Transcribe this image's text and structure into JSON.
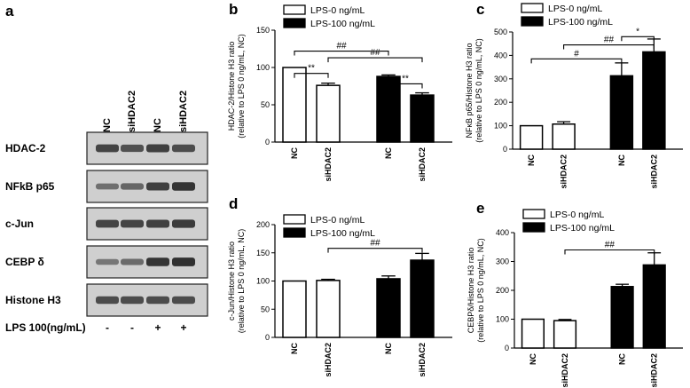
{
  "legend": {
    "open": "LPS-0 ng/mL",
    "filled": "LPS-100 ng/mL"
  },
  "colors": {
    "open": "#ffffff",
    "filled": "#000000",
    "band": "#2a2a2a",
    "blot_bg": "#cfcfcf"
  },
  "blot": {
    "letter": "a",
    "lanes": [
      "NC",
      "siHDAC2",
      "NC",
      "siHDAC2"
    ],
    "rows": [
      {
        "label": "HDAC-2",
        "intensity": [
          0.75,
          0.65,
          0.8,
          0.7
        ]
      },
      {
        "label": "NFkB p65",
        "intensity": [
          0.35,
          0.45,
          0.8,
          0.9
        ]
      },
      {
        "label": "c-Jun",
        "intensity": [
          0.75,
          0.75,
          0.8,
          0.85
        ]
      },
      {
        "label": "CEBP δ",
        "intensity": [
          0.3,
          0.4,
          0.9,
          0.95
        ]
      },
      {
        "label": "Histone H3",
        "intensity": [
          0.7,
          0.7,
          0.7,
          0.7
        ]
      }
    ],
    "lps_label": "LPS 100(ng/mL)",
    "lps_signs": [
      "-",
      "-",
      "+",
      "+"
    ]
  },
  "chart_data": [
    {
      "type": "bar",
      "letter": "b",
      "ylabel": [
        "HDAC-2/Histone H3 ratio",
        "(relative to LPS 0 ng/mL, NC)"
      ],
      "categories": [
        "NC",
        "siHDAC2",
        "NC",
        "siHDAC2"
      ],
      "lps": [
        "0",
        "0",
        "100",
        "100"
      ],
      "values": [
        100,
        76,
        88,
        63
      ],
      "errors": [
        0,
        3,
        2,
        3
      ],
      "ylim": [
        0,
        150
      ],
      "yticks": [
        0,
        50,
        100,
        150
      ],
      "significance": [
        {
          "from": 0,
          "to": 1,
          "label": "**",
          "level": 92
        },
        {
          "from": 2,
          "to": 3,
          "label": "**",
          "level": 78
        },
        {
          "from": 1,
          "to": 3,
          "label": "##",
          "level": 113
        },
        {
          "from": 0,
          "to": 2,
          "label": "##",
          "level": 122
        }
      ]
    },
    {
      "type": "bar",
      "letter": "c",
      "ylabel": [
        "NFκB p65/Histone H3 ratio",
        "(relative to LPS 0 ng/mL, NC)"
      ],
      "categories": [
        "NC",
        "siHDAC2",
        "NC",
        "siHDAC2"
      ],
      "lps": [
        "0",
        "0",
        "100",
        "100"
      ],
      "values": [
        100,
        107,
        313,
        415
      ],
      "errors": [
        0,
        10,
        55,
        55
      ],
      "ylim": [
        0,
        500
      ],
      "yticks": [
        0,
        100,
        200,
        300,
        400,
        500
      ],
      "significance": [
        {
          "from": 0,
          "to": 2,
          "label": "#",
          "level": 385
        },
        {
          "from": 1,
          "to": 3,
          "label": "##",
          "level": 445
        },
        {
          "from": 2,
          "to": 3,
          "label": "*",
          "level": 480
        }
      ]
    },
    {
      "type": "bar",
      "letter": "d",
      "ylabel": [
        "c-Jun/Histone H3 ratio",
        "(relative to LPS 0 ng/mL, NC)"
      ],
      "categories": [
        "NC",
        "siHDAC2",
        "NC",
        "siHDAC2"
      ],
      "lps": [
        "0",
        "0",
        "100",
        "100"
      ],
      "values": [
        100,
        101,
        104,
        137
      ],
      "errors": [
        0,
        2,
        5,
        12
      ],
      "ylim": [
        0,
        200
      ],
      "yticks": [
        0,
        50,
        100,
        150,
        200
      ],
      "significance": [
        {
          "from": 1,
          "to": 3,
          "label": "##",
          "level": 158
        }
      ]
    },
    {
      "type": "bar",
      "letter": "e",
      "ylabel": [
        "CEBPδ/Histone H3 ratio",
        "(relative to LPS 0 ng/mL, NC)"
      ],
      "categories": [
        "NC",
        "siHDAC2",
        "NC",
        "siHDAC2"
      ],
      "lps": [
        "0",
        "0",
        "100",
        "100"
      ],
      "values": [
        100,
        95,
        213,
        288
      ],
      "errors": [
        0,
        4,
        8,
        42
      ],
      "ylim": [
        0,
        400
      ],
      "yticks": [
        0,
        100,
        200,
        300,
        400
      ],
      "significance": [
        {
          "from": 1,
          "to": 3,
          "label": "##",
          "level": 340
        }
      ]
    }
  ]
}
